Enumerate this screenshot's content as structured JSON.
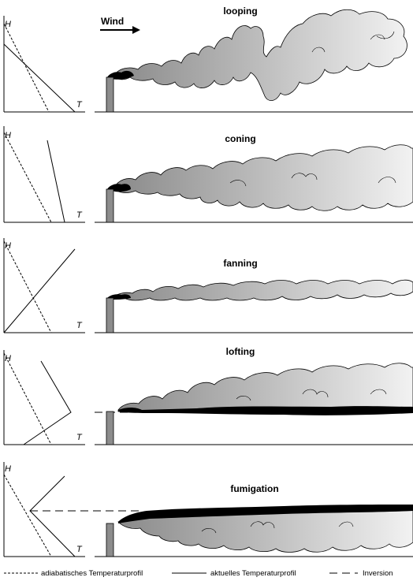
{
  "wind_label": "Wind",
  "axis": {
    "y": "H",
    "x": "T"
  },
  "panels": [
    {
      "title": "looping"
    },
    {
      "title": "coning"
    },
    {
      "title": "fanning"
    },
    {
      "title": "lofting"
    },
    {
      "title": "fumigation"
    }
  ],
  "legend": {
    "adiabatic": "adiabatisches Temperaturprofil",
    "actual": "aktuelles Temperaturprofil",
    "inversion": "Inversion"
  },
  "colors": {
    "plume_dark": "#8a8a8a",
    "plume_light": "#f2f2f2",
    "stack": "#8c8c8c",
    "smoke": "#000000"
  }
}
